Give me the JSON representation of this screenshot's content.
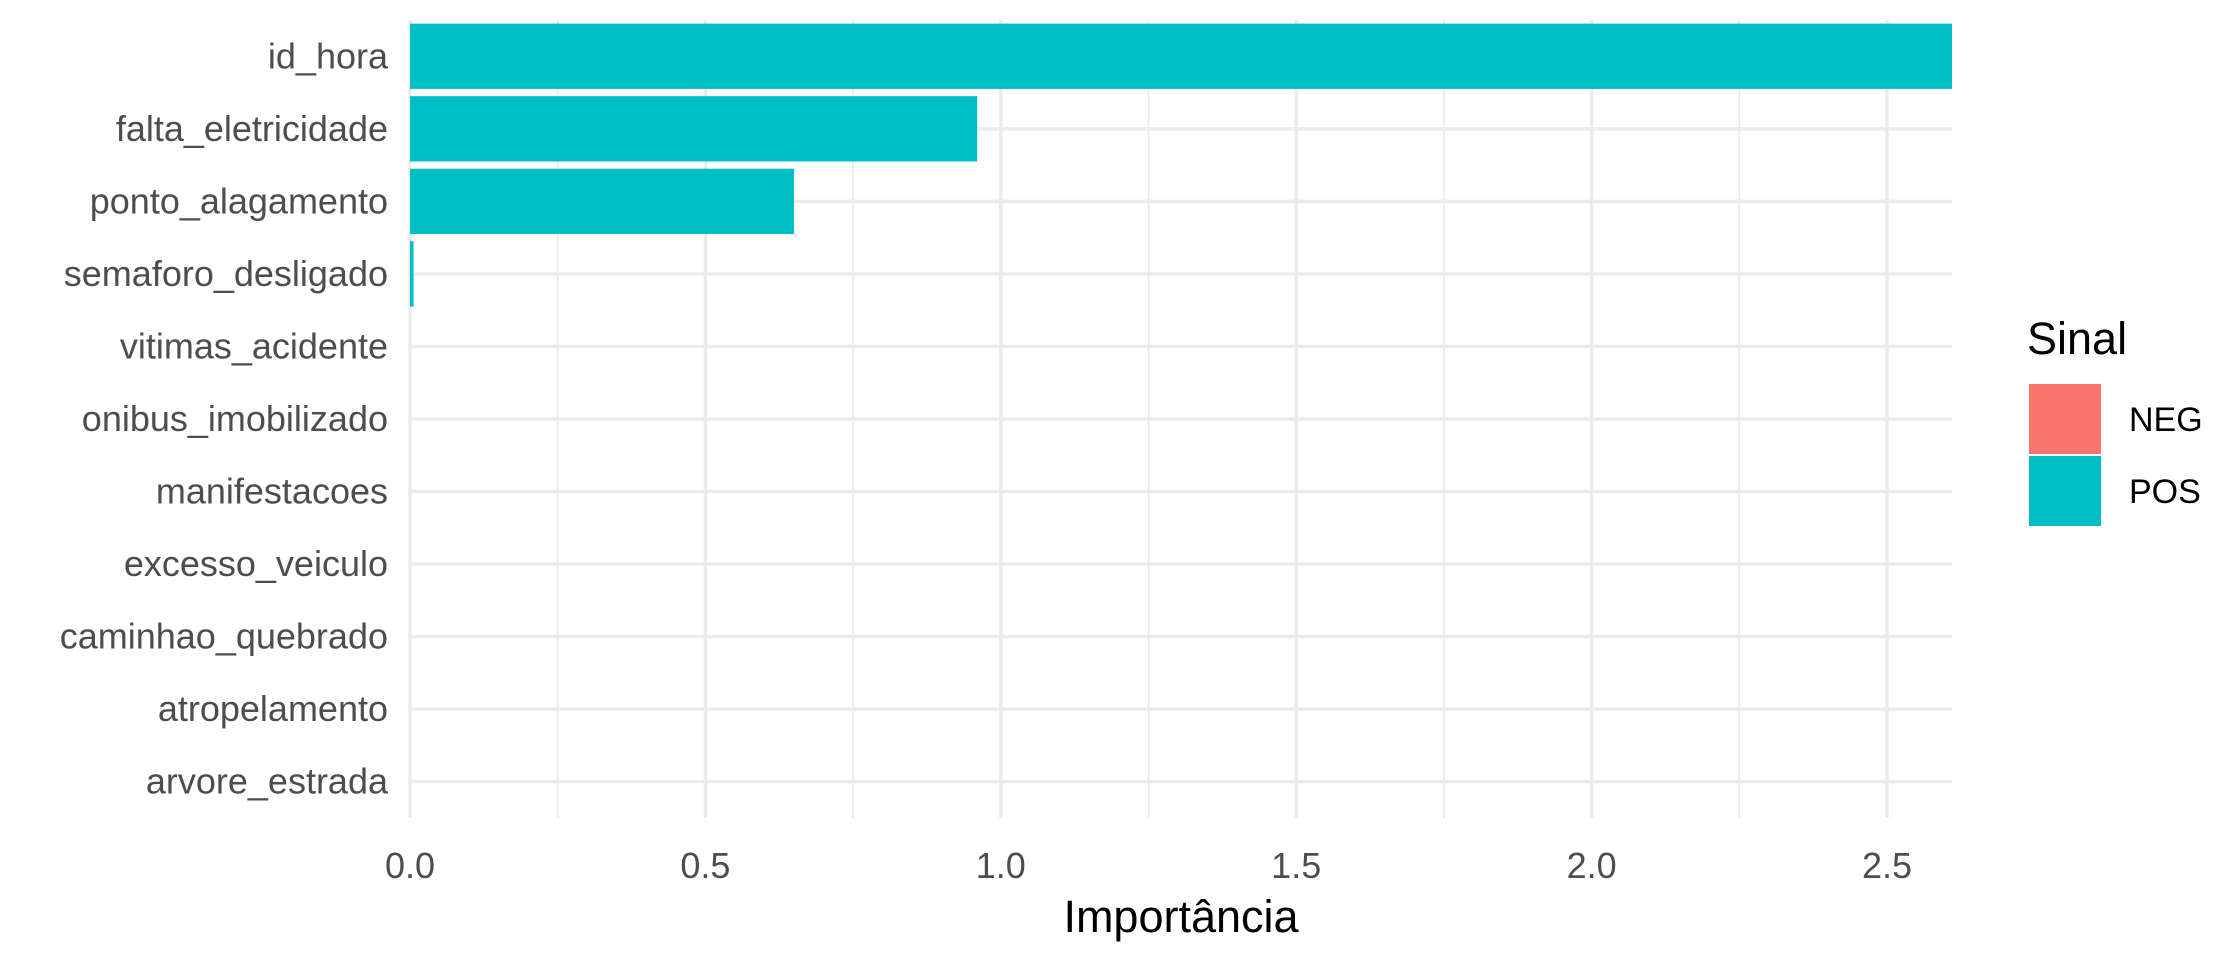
{
  "chart_data": {
    "type": "bar",
    "orientation": "horizontal",
    "categories": [
      "id_hora",
      "falta_eletricidade",
      "ponto_alagamento",
      "semaforo_desligado",
      "vitimas_acidente",
      "onibus_imobilizado",
      "manifestacoes",
      "excesso_veiculo",
      "caminhao_quebrado",
      "atropelamento",
      "arvore_estrada"
    ],
    "values": [
      2.61,
      0.96,
      0.65,
      0.006,
      0,
      0,
      0,
      0,
      0,
      0,
      0
    ],
    "signs": [
      "POS",
      "POS",
      "POS",
      "POS",
      "POS",
      "POS",
      "POS",
      "POS",
      "POS",
      "POS",
      "POS"
    ],
    "xlabel": "Importância",
    "xlim": [
      0,
      2.61
    ],
    "x_ticks": [
      0,
      0.5,
      1,
      1.5,
      2,
      2.5
    ],
    "x_tick_labels": [
      "0.0",
      "0.5",
      "1.0",
      "1.5",
      "2.0",
      "2.5"
    ],
    "grid": true,
    "legend": {
      "title": "Sinal",
      "placement": "right",
      "entries": [
        {
          "label": "NEG",
          "color": "#F8766D"
        },
        {
          "label": "POS",
          "color": "#00BFC4"
        }
      ]
    }
  }
}
